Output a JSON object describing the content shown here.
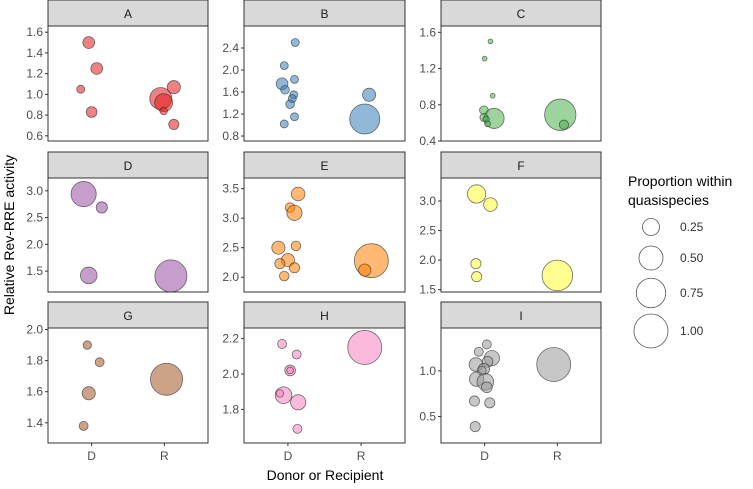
{
  "chart_data": {
    "type": "scatter",
    "subtype": "faceted bubble",
    "xlabel": "Donor or Recipient",
    "ylabel": "Relative Rev-RRE activity",
    "x_categories": [
      "D",
      "R"
    ],
    "legend": {
      "title_lines": [
        "Proportion within",
        "quasispecies"
      ],
      "entries": [
        {
          "value": 0.25,
          "label": "0.25"
        },
        {
          "value": 0.5,
          "label": "0.50"
        },
        {
          "value": 0.75,
          "label": "0.75"
        },
        {
          "value": 1.0,
          "label": "1.00"
        }
      ],
      "placement": "right"
    },
    "panels": [
      {
        "label": "A",
        "color": "#E41A1C",
        "ylim": [
          0.55,
          1.66
        ],
        "yticks": [
          "0.6",
          "0.8",
          "1.0",
          "1.2",
          "1.4",
          "1.6"
        ],
        "points": [
          {
            "group": "D",
            "x": 0.96,
            "y": 1.5,
            "p": 0.12
          },
          {
            "group": "D",
            "x": 1.07,
            "y": 1.25,
            "p": 0.12
          },
          {
            "group": "D",
            "x": 0.85,
            "y": 1.05,
            "p": 0.055
          },
          {
            "group": "D",
            "x": 1.0,
            "y": 0.83,
            "p": 0.1
          },
          {
            "group": "R",
            "x": 2.13,
            "y": 1.07,
            "p": 0.15
          },
          {
            "group": "R",
            "x": 1.95,
            "y": 0.96,
            "p": 0.42
          },
          {
            "group": "R",
            "x": 1.99,
            "y": 0.92,
            "p": 0.28
          },
          {
            "group": "R",
            "x": 1.99,
            "y": 0.84,
            "p": 0.05
          },
          {
            "group": "R",
            "x": 2.13,
            "y": 0.71,
            "p": 0.09
          }
        ]
      },
      {
        "label": "B",
        "color": "#377EB8",
        "ylim": [
          0.71,
          2.8
        ],
        "yticks": [
          "0.8",
          "1.2",
          "1.6",
          "2.0",
          "2.4"
        ],
        "points": [
          {
            "group": "D",
            "x": 1.1,
            "y": 2.5,
            "p": 0.055
          },
          {
            "group": "D",
            "x": 0.95,
            "y": 2.08,
            "p": 0.055
          },
          {
            "group": "D",
            "x": 1.09,
            "y": 1.83,
            "p": 0.055
          },
          {
            "group": "D",
            "x": 0.92,
            "y": 1.75,
            "p": 0.12
          },
          {
            "group": "D",
            "x": 0.96,
            "y": 1.64,
            "p": 0.065
          },
          {
            "group": "D",
            "x": 1.08,
            "y": 1.55,
            "p": 0.055
          },
          {
            "group": "D",
            "x": 1.06,
            "y": 1.48,
            "p": 0.055
          },
          {
            "group": "D",
            "x": 1.03,
            "y": 1.38,
            "p": 0.065
          },
          {
            "group": "D",
            "x": 1.09,
            "y": 1.15,
            "p": 0.055
          },
          {
            "group": "D",
            "x": 0.95,
            "y": 1.02,
            "p": 0.055
          },
          {
            "group": "R",
            "x": 2.11,
            "y": 1.55,
            "p": 0.15
          },
          {
            "group": "R",
            "x": 2.05,
            "y": 1.11,
            "p": 0.78
          }
        ]
      },
      {
        "label": "C",
        "color": "#4DAF4A",
        "ylim": [
          0.4,
          1.67
        ],
        "yticks": [
          "0.4",
          "0.8",
          "1.2",
          "1.6"
        ],
        "points": [
          {
            "group": "D",
            "x": 1.08,
            "y": 1.5,
            "p": 0.02
          },
          {
            "group": "D",
            "x": 1.0,
            "y": 1.31,
            "p": 0.02
          },
          {
            "group": "D",
            "x": 1.11,
            "y": 0.9,
            "p": 0.02
          },
          {
            "group": "D",
            "x": 0.99,
            "y": 0.74,
            "p": 0.065
          },
          {
            "group": "D",
            "x": 1.13,
            "y": 0.65,
            "p": 0.35
          },
          {
            "group": "D",
            "x": 0.99,
            "y": 0.66,
            "p": 0.055
          },
          {
            "group": "D",
            "x": 1.02,
            "y": 0.64,
            "p": 0.035
          },
          {
            "group": "D",
            "x": 1.04,
            "y": 0.59,
            "p": 0.03
          },
          {
            "group": "R",
            "x": 2.04,
            "y": 0.69,
            "p": 0.85
          },
          {
            "group": "R",
            "x": 2.09,
            "y": 0.58,
            "p": 0.075
          }
        ]
      },
      {
        "label": "D",
        "color": "#984EA3",
        "ylim": [
          1.11,
          3.24
        ],
        "yticks": [
          "1.5",
          "2.0",
          "2.5",
          "3.0"
        ],
        "points": [
          {
            "group": "D",
            "x": 0.89,
            "y": 2.94,
            "p": 0.55
          },
          {
            "group": "D",
            "x": 1.14,
            "y": 2.69,
            "p": 0.11
          },
          {
            "group": "D",
            "x": 0.96,
            "y": 1.42,
            "p": 0.24
          },
          {
            "group": "R",
            "x": 2.09,
            "y": 1.41,
            "p": 0.89
          }
        ]
      },
      {
        "label": "E",
        "color": "#FF7F00",
        "ylim": [
          1.75,
          3.68
        ],
        "yticks": [
          "2.0",
          "2.5",
          "3.0",
          "3.5"
        ],
        "points": [
          {
            "group": "D",
            "x": 1.14,
            "y": 3.41,
            "p": 0.16
          },
          {
            "group": "D",
            "x": 1.03,
            "y": 3.18,
            "p": 0.08
          },
          {
            "group": "D",
            "x": 1.09,
            "y": 3.09,
            "p": 0.2
          },
          {
            "group": "D",
            "x": 0.87,
            "y": 2.5,
            "p": 0.15
          },
          {
            "group": "D",
            "x": 1.11,
            "y": 2.53,
            "p": 0.08
          },
          {
            "group": "D",
            "x": 1.0,
            "y": 2.29,
            "p": 0.15
          },
          {
            "group": "D",
            "x": 0.89,
            "y": 2.23,
            "p": 0.09
          },
          {
            "group": "D",
            "x": 1.09,
            "y": 2.16,
            "p": 0.09
          },
          {
            "group": "D",
            "x": 0.95,
            "y": 2.02,
            "p": 0.08
          },
          {
            "group": "R",
            "x": 2.14,
            "y": 2.28,
            "p": 1.0
          },
          {
            "group": "R",
            "x": 2.05,
            "y": 2.12,
            "p": 0.13
          }
        ]
      },
      {
        "label": "F",
        "color": "#FFFF33",
        "ylim": [
          1.46,
          3.39
        ],
        "yticks": [
          "1.5",
          "2.0",
          "2.5",
          "3.0"
        ],
        "points": [
          {
            "group": "D",
            "x": 0.89,
            "y": 3.12,
            "p": 0.29
          },
          {
            "group": "D",
            "x": 1.08,
            "y": 2.94,
            "p": 0.16
          },
          {
            "group": "D",
            "x": 0.88,
            "y": 1.94,
            "p": 0.09
          },
          {
            "group": "D",
            "x": 0.89,
            "y": 1.72,
            "p": 0.09
          },
          {
            "group": "R",
            "x": 2.0,
            "y": 1.74,
            "p": 0.81
          }
        ]
      },
      {
        "label": "G",
        "color": "#A65628",
        "ylim": [
          1.27,
          2.01
        ],
        "yticks": [
          "1.4",
          "1.6",
          "1.8",
          "2.0"
        ],
        "points": [
          {
            "group": "D",
            "x": 0.94,
            "y": 1.9,
            "p": 0.06
          },
          {
            "group": "D",
            "x": 1.11,
            "y": 1.79,
            "p": 0.07
          },
          {
            "group": "D",
            "x": 0.96,
            "y": 1.59,
            "p": 0.15
          },
          {
            "group": "D",
            "x": 0.89,
            "y": 1.38,
            "p": 0.07
          },
          {
            "group": "R",
            "x": 2.03,
            "y": 1.68,
            "p": 0.89
          }
        ]
      },
      {
        "label": "H",
        "color": "#F781BF",
        "ylim": [
          1.61,
          2.26
        ],
        "yticks": [
          "1.8",
          "2.0",
          "2.2"
        ],
        "points": [
          {
            "group": "D",
            "x": 0.92,
            "y": 2.17,
            "p": 0.07
          },
          {
            "group": "D",
            "x": 1.12,
            "y": 2.11,
            "p": 0.07
          },
          {
            "group": "D",
            "x": 1.03,
            "y": 2.02,
            "p": 0.1
          },
          {
            "group": "D",
            "x": 1.03,
            "y": 2.02,
            "p": 0.04
          },
          {
            "group": "D",
            "x": 0.94,
            "y": 1.88,
            "p": 0.24
          },
          {
            "group": "D",
            "x": 0.89,
            "y": 1.89,
            "p": 0.05
          },
          {
            "group": "D",
            "x": 1.14,
            "y": 1.84,
            "p": 0.2
          },
          {
            "group": "D",
            "x": 1.13,
            "y": 1.69,
            "p": 0.07
          },
          {
            "group": "R",
            "x": 2.05,
            "y": 2.15,
            "p": 1.0
          }
        ]
      },
      {
        "label": "I",
        "color": "#999999",
        "ylim": [
          0.21,
          1.47
        ],
        "yticks": [
          "0.5",
          "1.0"
        ],
        "points": [
          {
            "group": "D",
            "x": 1.03,
            "y": 1.29,
            "p": 0.07
          },
          {
            "group": "D",
            "x": 0.92,
            "y": 1.21,
            "p": 0.07
          },
          {
            "group": "D",
            "x": 1.1,
            "y": 1.14,
            "p": 0.2
          },
          {
            "group": "D",
            "x": 1.04,
            "y": 1.1,
            "p": 0.1
          },
          {
            "group": "D",
            "x": 0.88,
            "y": 1.07,
            "p": 0.16
          },
          {
            "group": "D",
            "x": 0.99,
            "y": 1.02,
            "p": 0.11
          },
          {
            "group": "D",
            "x": 0.96,
            "y": 1.0,
            "p": 0.07
          },
          {
            "group": "D",
            "x": 0.89,
            "y": 0.91,
            "p": 0.18
          },
          {
            "group": "D",
            "x": 1.01,
            "y": 0.88,
            "p": 0.24
          },
          {
            "group": "D",
            "x": 1.03,
            "y": 0.82,
            "p": 0.1
          },
          {
            "group": "D",
            "x": 0.86,
            "y": 0.67,
            "p": 0.09
          },
          {
            "group": "D",
            "x": 1.07,
            "y": 0.65,
            "p": 0.09
          },
          {
            "group": "D",
            "x": 0.87,
            "y": 0.39,
            "p": 0.09
          },
          {
            "group": "R",
            "x": 1.95,
            "y": 1.07,
            "p": 1.0
          }
        ]
      }
    ]
  }
}
